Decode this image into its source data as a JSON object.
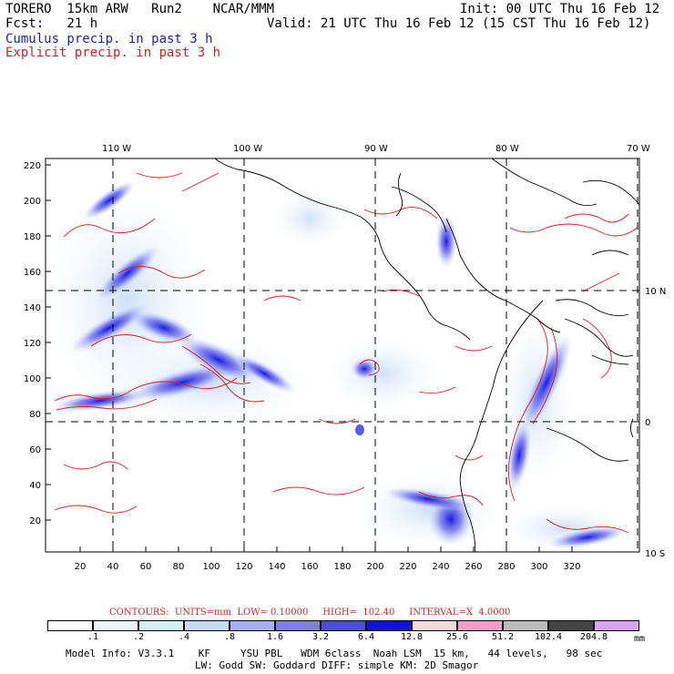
{
  "header": {
    "left1": "TORERO  15km ARW   Run2    NCAR/MMM",
    "left2": "Fcst:   21 h",
    "init": "Init: 00 UTC Thu 16 Feb 12",
    "valid": "Valid: 21 UTC Thu 16 Feb 12 (15 CST Thu 16 Feb 12)",
    "cumulus": "Cumulus precip. in past 3 h",
    "explicit": "Explicit precip. in past 3 h"
  },
  "map": {
    "lon_labels": [
      "110 W",
      "100 W",
      "90 W",
      "80 W",
      "70 W"
    ],
    "lat_labels": [
      "10 N",
      "0",
      "10 S"
    ],
    "y_ticks": [
      "220",
      "200",
      "180",
      "160",
      "140",
      "120",
      "100",
      "80",
      "60",
      "40",
      "20"
    ],
    "x_ticks": [
      "20",
      "40",
      "60",
      "80",
      "100",
      "120",
      "140",
      "160",
      "180",
      "200",
      "220",
      "240",
      "260",
      "280",
      "300",
      "320"
    ]
  },
  "contours": {
    "text": "CONTOURS:  UNITS=mm  LOW= 0.10000     HIGH=  102.40     INTERVAL=X  4.0000"
  },
  "colorbar": {
    "labels": [
      ".1",
      ".2",
      ".4",
      ".8",
      "1.6",
      "3.2",
      "6.4",
      "12.8",
      "25.6",
      "51.2",
      "102.4",
      "204.8"
    ],
    "units": "mm",
    "colors": [
      "#ffffff",
      "#eaf6fb",
      "#d2f0f4",
      "#c6d9f6",
      "#a8b0f0",
      "#7f7fea",
      "#4b4be6",
      "#1010e0",
      "#f4dada",
      "#f19ec9",
      "#bcbcbc",
      "#444444",
      "#d8a6f0"
    ]
  },
  "model_info": {
    "line1": "Model Info: V3.3.1    KF     YSU PBL   WDM 6class  Noah LSM  15 km,   44 levels,   98 sec",
    "line2": "LW: Godd SW: Goddard DIFF: simple KM: 2D Smagor"
  }
}
